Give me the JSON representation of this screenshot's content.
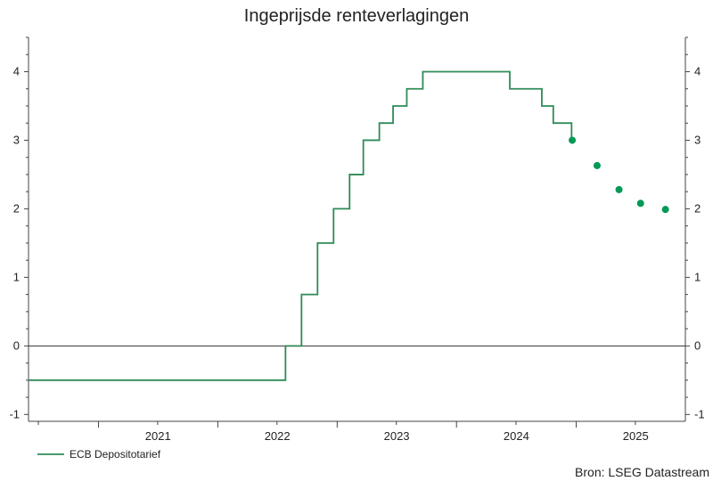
{
  "chart_data": {
    "type": "line",
    "title": "Ingeprijsde renteverlagingen",
    "source": "Bron: LSEG Datastream",
    "ylim": [
      -1.1,
      4.5
    ],
    "y_ticks": [
      -1,
      0,
      1,
      2,
      3,
      4
    ],
    "y_tick_labels": [
      "-1",
      "0",
      "1",
      "2",
      "3",
      "4"
    ],
    "x_range": [
      "2020-06-01",
      "2025-12-01"
    ],
    "x_tick_labels": [
      {
        "label": "2021",
        "date": "2021-01-01"
      },
      {
        "label": "2022",
        "date": "2022-01-01"
      },
      {
        "label": "2023",
        "date": "2023-01-01"
      },
      {
        "label": "2024",
        "date": "2024-01-01"
      },
      {
        "label": "2025",
        "date": "2025-01-01"
      }
    ],
    "zero_line": true,
    "legend": {
      "position": "bottom-left"
    },
    "series": [
      {
        "name": "ECB Depositotarief",
        "kind": "step",
        "color": "#2e8b57",
        "points": [
          {
            "x": "2020-06-01",
            "y": -0.5
          },
          {
            "x": "2022-07-27",
            "y": 0.0
          },
          {
            "x": "2022-09-14",
            "y": 0.75
          },
          {
            "x": "2022-11-02",
            "y": 1.5
          },
          {
            "x": "2022-12-21",
            "y": 2.0
          },
          {
            "x": "2023-02-08",
            "y": 2.5
          },
          {
            "x": "2023-03-22",
            "y": 3.0
          },
          {
            "x": "2023-05-10",
            "y": 3.25
          },
          {
            "x": "2023-06-21",
            "y": 3.5
          },
          {
            "x": "2023-08-02",
            "y": 3.75
          },
          {
            "x": "2023-09-20",
            "y": 4.0
          },
          {
            "x": "2024-06-12",
            "y": 3.75
          },
          {
            "x": "2024-09-18",
            "y": 3.5
          },
          {
            "x": "2024-10-23",
            "y": 3.25
          },
          {
            "x": "2024-12-18",
            "y": 3.0
          }
        ],
        "end": "2024-12-20"
      },
      {
        "kind": "scatter",
        "color": "#009955",
        "points": [
          {
            "x": "2024-12-20",
            "y": 3.0
          },
          {
            "x": "2025-03-06",
            "y": 2.63
          },
          {
            "x": "2025-05-12",
            "y": 2.28
          },
          {
            "x": "2025-07-17",
            "y": 2.08
          },
          {
            "x": "2025-10-01",
            "y": 1.99
          }
        ]
      }
    ]
  }
}
